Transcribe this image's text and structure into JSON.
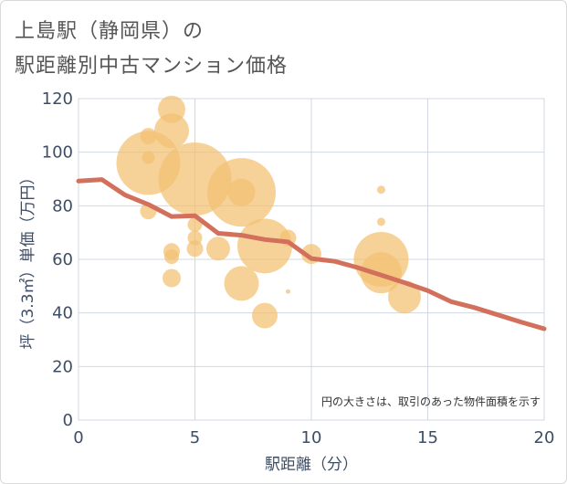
{
  "title": {
    "line1": "上島駅（静岡県）の",
    "line2": "駅距離別中古マンション価格"
  },
  "note": "円の大きさは、取引のあった物件面積を示す",
  "colors": {
    "background": "#ffffff",
    "bubble": "#f2c172",
    "line": "#d3705c",
    "grid": "#d0d7e2",
    "axis_text": "#3d4d66",
    "title_text": "#555555"
  },
  "chart_data": {
    "type": "scatter",
    "title": "上島駅（静岡県）の駅距離別中古マンション価格",
    "xlabel": "駅距離（分）",
    "ylabel": "坪（3.3㎡）単価（万円）",
    "xlim": [
      0,
      20
    ],
    "ylim": [
      0,
      120
    ],
    "xticks": [
      0,
      5,
      10,
      15,
      20
    ],
    "yticks": [
      0,
      20,
      40,
      60,
      80,
      100,
      120
    ],
    "grid": true,
    "series": [
      {
        "type": "bubble",
        "points": [
          {
            "x": 3,
            "y": 106,
            "size": 18
          },
          {
            "x": 3,
            "y": 98,
            "size": 14
          },
          {
            "x": 3,
            "y": 96,
            "size": 70
          },
          {
            "x": 3,
            "y": 78,
            "size": 18
          },
          {
            "x": 4,
            "y": 116,
            "size": 30
          },
          {
            "x": 4,
            "y": 108,
            "size": 38
          },
          {
            "x": 4,
            "y": 63,
            "size": 18
          },
          {
            "x": 4,
            "y": 61,
            "size": 16
          },
          {
            "x": 4,
            "y": 53,
            "size": 20
          },
          {
            "x": 5,
            "y": 90,
            "size": 80
          },
          {
            "x": 5,
            "y": 73,
            "size": 16
          },
          {
            "x": 5,
            "y": 68,
            "size": 16
          },
          {
            "x": 5,
            "y": 64,
            "size": 18
          },
          {
            "x": 6,
            "y": 64,
            "size": 26
          },
          {
            "x": 7,
            "y": 85,
            "size": 75
          },
          {
            "x": 7,
            "y": 85,
            "size": 30
          },
          {
            "x": 7,
            "y": 51,
            "size": 38
          },
          {
            "x": 8,
            "y": 65,
            "size": 60
          },
          {
            "x": 8,
            "y": 39,
            "size": 28
          },
          {
            "x": 9,
            "y": 68,
            "size": 18
          },
          {
            "x": 9,
            "y": 48,
            "size": 5
          },
          {
            "x": 10,
            "y": 62,
            "size": 22
          },
          {
            "x": 13,
            "y": 86,
            "size": 9
          },
          {
            "x": 13,
            "y": 74,
            "size": 9
          },
          {
            "x": 13,
            "y": 60,
            "size": 60
          },
          {
            "x": 13,
            "y": 55,
            "size": 45
          },
          {
            "x": 14,
            "y": 46,
            "size": 36
          }
        ]
      },
      {
        "type": "line",
        "x": [
          0,
          1,
          2,
          3,
          4,
          5,
          6,
          7,
          8,
          9,
          10,
          11,
          12,
          13,
          14,
          15,
          16,
          17,
          18,
          19,
          20
        ],
        "y": [
          89.2,
          89.8,
          84,
          80.5,
          76,
          76.3,
          69.7,
          69,
          67.4,
          66.5,
          60.3,
          59.3,
          56.9,
          54.1,
          51.3,
          48.3,
          44.2,
          42,
          39.3,
          36.6,
          34.1
        ]
      }
    ]
  }
}
